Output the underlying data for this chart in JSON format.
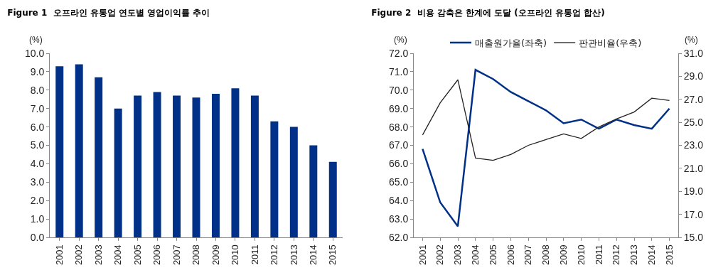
{
  "chart_data": [
    {
      "type": "bar",
      "title": "Figure 1  오프라인 유통업 연도별 영업이익률 추이",
      "ylabel": "(%)",
      "categories": [
        "2001",
        "2002",
        "2003",
        "2004",
        "2005",
        "2006",
        "2007",
        "2008",
        "2009",
        "2010",
        "2011",
        "2012",
        "2013",
        "2014",
        "2015"
      ],
      "values": [
        9.3,
        9.4,
        8.7,
        7.0,
        7.7,
        7.9,
        7.7,
        7.6,
        7.8,
        8.1,
        7.7,
        6.3,
        6.0,
        5.0,
        4.1
      ],
      "color": "#003087",
      "ylim": [
        0,
        10
      ],
      "yticks": [
        {
          "value": 0,
          "label": "0.0"
        },
        {
          "value": 1,
          "label": "1.0"
        },
        {
          "value": 2,
          "label": "2.0"
        },
        {
          "value": 3,
          "label": "3.0"
        },
        {
          "value": 4,
          "label": "4.0"
        },
        {
          "value": 5,
          "label": "5.0"
        },
        {
          "value": 6,
          "label": "6.0"
        },
        {
          "value": 7,
          "label": "7.0"
        },
        {
          "value": 8,
          "label": "8.0"
        },
        {
          "value": 9,
          "label": "9.0"
        },
        {
          "value": 10,
          "label": "10.0"
        }
      ],
      "grid": false,
      "legend": false
    },
    {
      "type": "line",
      "title": "Figure 2  비용 감축은 한계에 도달 (오프라인 유통업 합산)",
      "ylabel": "(%)",
      "y2label": "(%)",
      "categories": [
        "2001",
        "2002",
        "2003",
        "2004",
        "2005",
        "2006",
        "2007",
        "2008",
        "2009",
        "2010",
        "2011",
        "2012",
        "2013",
        "2014",
        "2015"
      ],
      "series": [
        {
          "name": "매출원가율(좌축)",
          "color": "#003087",
          "values": [
            66.8,
            63.9,
            62.6,
            71.1,
            70.6,
            69.9,
            69.4,
            68.9,
            68.2,
            68.4,
            67.9,
            68.4,
            68.1,
            67.9,
            69.0
          ]
        },
        {
          "name": "판관비율(우축)",
          "color": "#222222",
          "axis": "y2",
          "values": [
            23.9,
            26.7,
            28.7,
            21.9,
            21.7,
            22.2,
            23.0,
            23.5,
            24.0,
            23.6,
            24.6,
            25.3,
            25.9,
            27.1,
            26.9
          ]
        }
      ],
      "ylim": [
        62,
        72
      ],
      "yticks": [
        {
          "value": 62,
          "label": "62.0"
        },
        {
          "value": 63,
          "label": "63.0"
        },
        {
          "value": 64,
          "label": "64.0"
        },
        {
          "value": 65,
          "label": "65.0"
        },
        {
          "value": 66,
          "label": "66.0"
        },
        {
          "value": 67,
          "label": "67.0"
        },
        {
          "value": 68,
          "label": "68.0"
        },
        {
          "value": 69,
          "label": "69.0"
        },
        {
          "value": 70,
          "label": "70.0"
        },
        {
          "value": 71,
          "label": "71.0"
        },
        {
          "value": 72,
          "label": "72.0"
        }
      ],
      "y2lim": [
        15,
        31
      ],
      "y2ticks": [
        {
          "value": 15,
          "label": "15.0"
        },
        {
          "value": 17,
          "label": "17.0"
        },
        {
          "value": 19,
          "label": "19.0"
        },
        {
          "value": 21,
          "label": "21.0"
        },
        {
          "value": 23,
          "label": "23.0"
        },
        {
          "value": 25,
          "label": "25.0"
        },
        {
          "value": 27,
          "label": "27.0"
        },
        {
          "value": 29,
          "label": "29.0"
        },
        {
          "value": 31,
          "label": "31.0"
        }
      ],
      "grid": false,
      "legend": "top",
      "marker": "none",
      "line_style": "solid"
    }
  ]
}
